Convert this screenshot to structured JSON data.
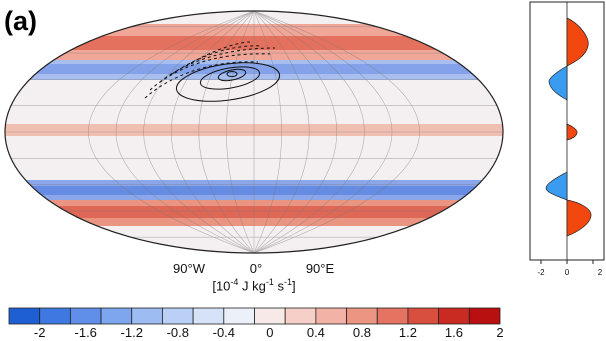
{
  "panel_label": "(a)",
  "longitude_labels": [
    "90°W",
    "0°",
    "90°E"
  ],
  "units": {
    "base": "[10",
    "exp1": "-4",
    "mid": " J kg",
    "exp2": "-1",
    "mid2": " s",
    "exp3": "-1",
    "end": "]"
  },
  "colorbar": {
    "tick_labels": [
      "-2",
      "-1.6",
      "-1.2",
      "-0.8",
      "-0.4",
      "0",
      "0.4",
      "0.8",
      "1.2",
      "1.6",
      "2"
    ],
    "colors": [
      "#1e5fd4",
      "#3f78e0",
      "#5f8fe8",
      "#7ea6ee",
      "#9cbcf2",
      "#bbd0f5",
      "#d6e2f7",
      "#ecf0f8",
      "#f7e9e7",
      "#f6d0c8",
      "#f2b3a6",
      "#ec9582",
      "#e47461",
      "#d84e3f",
      "#c92a22",
      "#b80f10"
    ]
  },
  "side_panel": {
    "tick_labels": [
      "-2",
      "0",
      "2"
    ]
  }
}
